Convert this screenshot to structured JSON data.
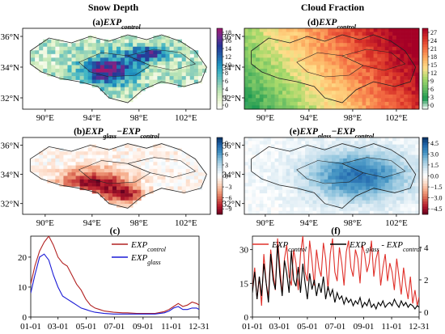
{
  "column_titles": [
    "Snow Depth",
    "Cloud Fraction"
  ],
  "chart_data": [
    {
      "type": "heatmap",
      "panel_label": "(a)",
      "title_main": "EXP",
      "title_sub": "control",
      "map_style": "snow",
      "colormap": [
        "#ffffff",
        "#e8f5d0",
        "#bfe6b5",
        "#7fc9bb",
        "#41b6c4",
        "#1d91c0",
        "#225ea8",
        "#253494",
        "#6a2c90",
        "#a0186e"
      ],
      "xticks": [
        "90°E",
        "94°E",
        "98°E",
        "102°E"
      ],
      "yticks": [
        "36°N",
        "34°N",
        "32°N"
      ],
      "colorbar_ticks": [
        "18",
        "16",
        "14",
        "12",
        "10",
        "8",
        "6",
        "4",
        "2",
        "0"
      ]
    },
    {
      "type": "heatmap",
      "panel_label": "(d)",
      "title_main": "EXP",
      "title_sub": "control",
      "map_style": "cloud",
      "colormap": [
        "#ffffff",
        "#1a9850",
        "#66bd63",
        "#a6d96a",
        "#fee08b",
        "#fdae61",
        "#f46d43",
        "#d73027",
        "#a50026"
      ],
      "xticks": [
        "90°E",
        "94°E",
        "98°E",
        "102°E"
      ],
      "yticks": [
        "36°N",
        "34°N",
        "32°N"
      ],
      "colorbar_ticks": [
        "27",
        "24",
        "21",
        "18",
        "15",
        "12",
        "9",
        "6",
        "3",
        "0"
      ]
    },
    {
      "type": "heatmap",
      "panel_label": "(b)",
      "title_main": "EXP",
      "title_sub": "glass",
      "title_mid": "−EXP",
      "title_sub2": "control",
      "map_style": "snowdiff",
      "colormap": [
        "#67001f",
        "#b2182b",
        "#d6604d",
        "#f4a582",
        "#fddbc7",
        "#ffffff",
        "#d1e5f0",
        "#92c5de",
        "#4393c3",
        "#2166ac",
        "#053061"
      ],
      "xticks": [
        "90°E",
        "94°E",
        "98°E",
        "102°E"
      ],
      "yticks": [
        "36°N",
        "34°N",
        "32°N"
      ],
      "colorbar_ticks": [
        "9",
        "6",
        "3",
        "0",
        "−3",
        "−6",
        "−9"
      ]
    },
    {
      "type": "heatmap",
      "panel_label": "(e)",
      "title_main": "EXP",
      "title_sub": "glass",
      "title_mid": "−EXP",
      "title_sub2": "control",
      "map_style": "clouddiff",
      "colormap": [
        "#67001f",
        "#b2182b",
        "#d6604d",
        "#f4a582",
        "#fddbc7",
        "#ffffff",
        "#d1e5f0",
        "#92c5de",
        "#4393c3",
        "#2166ac",
        "#053061"
      ],
      "xticks": [
        "90°E",
        "94°E",
        "98°E",
        "102°E"
      ],
      "yticks": [
        "36°N",
        "34°N",
        "32°N"
      ],
      "colorbar_ticks": [
        "4.5",
        "3.0",
        "1.5",
        "0.0",
        "−1.5",
        "−3.0",
        "−4.5"
      ]
    },
    {
      "type": "line",
      "panel_label": "(c)",
      "x_ticks": [
        "01-01",
        "03-01",
        "05-01",
        "07-01",
        "09-01",
        "11-01",
        "12-31"
      ],
      "y_ticks": [
        0,
        10,
        20
      ],
      "ylim": [
        0,
        27
      ],
      "legend_position": "top-right",
      "series": [
        {
          "name_main": "EXP",
          "name_sub": "control",
          "color": "#b22222",
          "x": [
            1,
            10,
            20,
            30,
            40,
            50,
            60,
            70,
            80,
            90,
            100,
            110,
            120,
            130,
            140,
            150,
            160,
            170,
            180,
            190,
            200,
            210,
            220,
            230,
            240,
            250,
            260,
            270,
            280,
            290,
            300,
            310,
            320,
            330,
            340,
            350,
            360,
            365
          ],
          "values": [
            11,
            17,
            22,
            25,
            27,
            24,
            20,
            18,
            17,
            14,
            11,
            9,
            6,
            4,
            3,
            2.5,
            2,
            1.8,
            1.6,
            1.5,
            1.4,
            1.4,
            1.3,
            1.2,
            1.2,
            1.2,
            1.2,
            1.2,
            1.5,
            1.8,
            2.5,
            3.5,
            4.5,
            3.5,
            4,
            5,
            4.5,
            4
          ]
        },
        {
          "name_main": "EXP",
          "name_sub": "glass",
          "color": "#1a1ad6",
          "x": [
            1,
            10,
            20,
            30,
            40,
            50,
            60,
            70,
            80,
            90,
            100,
            110,
            120,
            130,
            140,
            150,
            160,
            170,
            180,
            190,
            200,
            210,
            220,
            230,
            240,
            250,
            260,
            270,
            280,
            290,
            300,
            310,
            320,
            330,
            340,
            350,
            360,
            365
          ],
          "values": [
            8,
            14,
            20,
            21,
            19,
            14,
            10,
            7,
            6,
            5,
            4,
            3,
            2.5,
            2,
            1.6,
            1.4,
            1.2,
            1.1,
            1,
            1,
            1,
            1,
            1,
            1,
            1,
            1,
            1,
            1,
            1.2,
            1.4,
            2,
            3,
            3.5,
            2.5,
            2.5,
            3,
            3,
            2.5
          ]
        }
      ]
    },
    {
      "type": "line",
      "panel_label": "(f)",
      "x_ticks": [
        "01-01",
        "03-01",
        "05-01",
        "07-01",
        "09-01",
        "11-01",
        "12-31"
      ],
      "y_ticks_left": [
        0,
        15,
        30
      ],
      "ylim_left": [
        0,
        36
      ],
      "y_ticks_right": [
        0,
        2,
        4
      ],
      "ylim_right": [
        -0.3,
        4.7
      ],
      "legend_position": "top",
      "series": [
        {
          "name_main": "EXP",
          "name_sub": "control",
          "color": "#e0302a",
          "axis": "left",
          "x": [
            1,
            6,
            11,
            16,
            21,
            26,
            31,
            36,
            41,
            46,
            51,
            56,
            61,
            66,
            71,
            76,
            81,
            86,
            91,
            96,
            101,
            106,
            111,
            116,
            121,
            126,
            131,
            136,
            141,
            146,
            151,
            156,
            161,
            166,
            171,
            176,
            181,
            186,
            191,
            196,
            201,
            206,
            211,
            216,
            221,
            226,
            231,
            236,
            241,
            246,
            251,
            256,
            261,
            266,
            271,
            276,
            281,
            286,
            291,
            296,
            301,
            306,
            311,
            316,
            321,
            326,
            331,
            336,
            341,
            346,
            351,
            356,
            361,
            365
          ],
          "values": [
            12,
            22,
            8,
            18,
            5,
            28,
            15,
            9,
            30,
            20,
            12,
            35,
            22,
            10,
            26,
            32,
            18,
            14,
            30,
            24,
            12,
            28,
            36,
            20,
            16,
            34,
            25,
            14,
            30,
            22,
            18,
            33,
            26,
            12,
            28,
            35,
            20,
            16,
            31,
            24,
            14,
            29,
            34,
            22,
            18,
            30,
            26,
            15,
            32,
            28,
            20,
            24,
            34,
            18,
            26,
            30,
            14,
            22,
            28,
            16,
            24,
            20,
            12,
            26,
            18,
            10,
            22,
            14,
            8,
            18,
            6,
            12,
            5,
            9
          ]
        },
        {
          "name_main": "EXP",
          "name_sub": "glass",
          "name_mid": " - EXP",
          "name_sub2": "control",
          "color": "#000000",
          "axis": "right",
          "x": [
            1,
            6,
            11,
            16,
            21,
            26,
            31,
            36,
            41,
            46,
            51,
            56,
            61,
            66,
            71,
            76,
            81,
            86,
            91,
            96,
            101,
            106,
            111,
            116,
            121,
            126,
            131,
            136,
            141,
            146,
            151,
            156,
            161,
            166,
            171,
            176,
            181,
            186,
            191,
            196,
            201,
            206,
            211,
            216,
            221,
            226,
            231,
            236,
            241,
            246,
            251,
            256,
            261,
            266,
            271,
            276,
            281,
            286,
            291,
            296,
            301,
            306,
            311,
            316,
            321,
            326,
            331,
            336,
            341,
            346,
            351,
            356,
            361,
            365
          ],
          "values": [
            1.2,
            2.5,
            0.8,
            2.2,
            1.0,
            3.0,
            1.8,
            0.6,
            3.6,
            2.0,
            1.4,
            4.2,
            2.2,
            1.0,
            3.2,
            2.4,
            1.2,
            3.8,
            2.0,
            1.6,
            2.8,
            1.2,
            3.0,
            1.8,
            0.8,
            2.4,
            1.4,
            2.0,
            1.0,
            1.8,
            1.2,
            2.2,
            0.8,
            1.6,
            1.0,
            1.4,
            0.6,
            1.2,
            0.8,
            1.0,
            0.5,
            0.9,
            0.6,
            0.8,
            0.4,
            0.7,
            0.5,
            0.9,
            0.3,
            0.6,
            0.4,
            0.8,
            0.3,
            0.5,
            0.2,
            0.6,
            0.4,
            0.7,
            0.3,
            0.5,
            0.6,
            0.4,
            0.8,
            0.5,
            0.3,
            0.7,
            0.4,
            0.6,
            0.3,
            0.5,
            0.4,
            0.2,
            0.4,
            0.3
          ]
        }
      ]
    }
  ]
}
